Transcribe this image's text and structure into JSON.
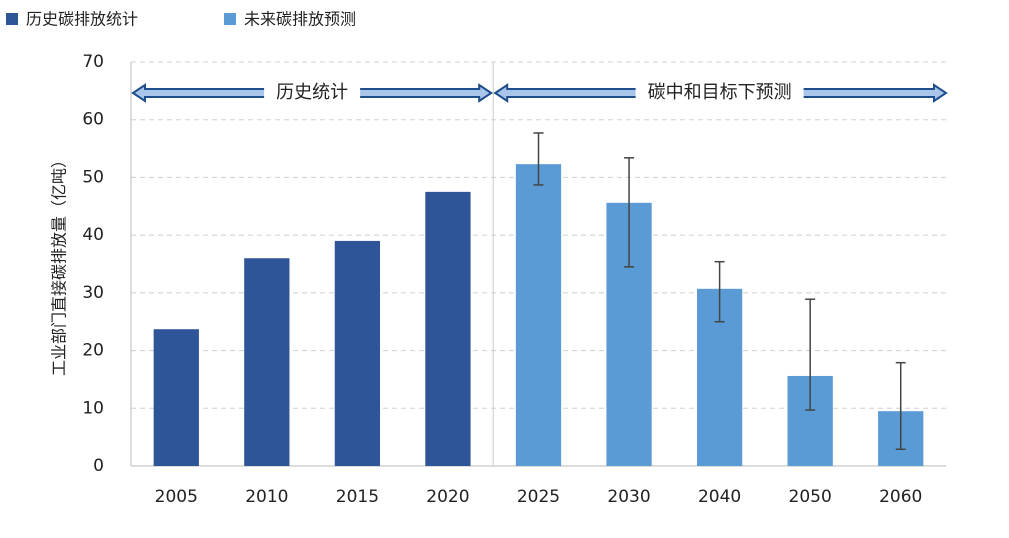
{
  "chart_data": {
    "type": "bar",
    "y_label": "工业部门直接碳排放量（亿吨）",
    "categories": [
      "2005",
      "2010",
      "2015",
      "2020",
      "2025",
      "2030",
      "2040",
      "2050",
      "2060"
    ],
    "series": [
      {
        "name": "历史碳排放统计",
        "color": "#2e5597",
        "values": [
          23.7,
          36.0,
          39.0,
          47.5,
          null,
          null,
          null,
          null,
          null
        ]
      },
      {
        "name": "未来碳排放预测",
        "color": "#5b9bd5",
        "values": [
          null,
          null,
          null,
          null,
          52.3,
          45.6,
          30.7,
          15.6,
          9.5
        ],
        "error_upper": [
          null,
          null,
          null,
          null,
          57.7,
          53.4,
          35.4,
          28.9,
          17.9
        ],
        "error_lower": [
          null,
          null,
          null,
          null,
          48.7,
          34.5,
          25.0,
          9.7,
          2.9
        ]
      }
    ],
    "annotations": [
      "历史统计",
      "碳中和目标下预测"
    ],
    "ylim": [
      0,
      70
    ],
    "yticks": [
      0,
      10,
      20,
      30,
      40,
      50,
      60,
      70
    ],
    "grid": true
  }
}
